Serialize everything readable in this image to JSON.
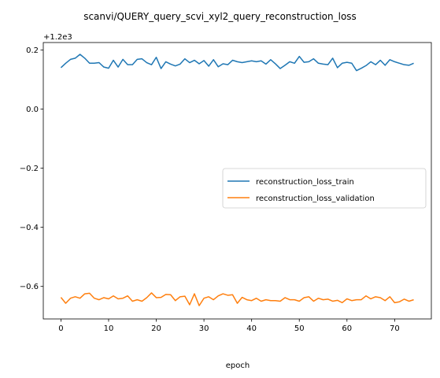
{
  "chart_data": {
    "type": "line",
    "title": "scanvi/QUERY_query_scvi_xyl2_query_reconstruction_loss",
    "xlabel": "epoch",
    "ylabel": "",
    "offset_label": "+1.2e3",
    "xlim": [
      -3.7,
      77.7
    ],
    "ylim": [
      -0.71,
      0.225
    ],
    "xticks": [
      0,
      10,
      20,
      30,
      40,
      50,
      60,
      70
    ],
    "yticks": [
      0.2,
      0.0,
      -0.2,
      -0.4,
      -0.6
    ],
    "ytick_labels": [
      "0.2",
      "0.0",
      "−0.2",
      "−0.4",
      "−0.6"
    ],
    "grid": false,
    "legend_position": "center-right",
    "series": [
      {
        "name": "reconstruction_loss_train",
        "color": "#1f77b4",
        "x": [
          0,
          1,
          2,
          3,
          4,
          5,
          6,
          7,
          8,
          9,
          10,
          11,
          12,
          13,
          14,
          15,
          16,
          17,
          18,
          19,
          20,
          21,
          22,
          23,
          24,
          25,
          26,
          27,
          28,
          29,
          30,
          31,
          32,
          33,
          34,
          35,
          36,
          37,
          38,
          39,
          40,
          41,
          42,
          43,
          44,
          45,
          46,
          47,
          48,
          49,
          50,
          51,
          52,
          53,
          54,
          55,
          56,
          57,
          58,
          59,
          60,
          61,
          62,
          63,
          64,
          65,
          66,
          67,
          68,
          69,
          70,
          71,
          72,
          73,
          74
        ],
        "values": [
          0.14,
          0.155,
          0.168,
          0.172,
          0.185,
          0.172,
          0.155,
          0.155,
          0.157,
          0.142,
          0.138,
          0.165,
          0.142,
          0.168,
          0.15,
          0.15,
          0.168,
          0.17,
          0.157,
          0.15,
          0.175,
          0.137,
          0.16,
          0.152,
          0.146,
          0.152,
          0.17,
          0.157,
          0.165,
          0.153,
          0.164,
          0.145,
          0.167,
          0.143,
          0.153,
          0.15,
          0.165,
          0.16,
          0.157,
          0.16,
          0.163,
          0.16,
          0.163,
          0.152,
          0.167,
          0.153,
          0.137,
          0.148,
          0.16,
          0.155,
          0.178,
          0.158,
          0.16,
          0.17,
          0.155,
          0.152,
          0.15,
          0.172,
          0.14,
          0.155,
          0.158,
          0.155,
          0.13,
          0.138,
          0.147,
          0.16,
          0.15,
          0.165,
          0.148,
          0.167,
          0.16,
          0.155,
          0.15,
          0.148,
          0.155
        ]
      },
      {
        "name": "reconstruction_loss_validation",
        "color": "#ff7f0e",
        "x": [
          0,
          1,
          2,
          3,
          4,
          5,
          6,
          7,
          8,
          9,
          10,
          11,
          12,
          13,
          14,
          15,
          16,
          17,
          18,
          19,
          20,
          21,
          22,
          23,
          24,
          25,
          26,
          27,
          28,
          29,
          30,
          31,
          32,
          33,
          34,
          35,
          36,
          37,
          38,
          39,
          40,
          41,
          42,
          43,
          44,
          45,
          46,
          47,
          48,
          49,
          50,
          51,
          52,
          53,
          54,
          55,
          56,
          57,
          58,
          59,
          60,
          61,
          62,
          63,
          64,
          65,
          66,
          67,
          68,
          69,
          70,
          71,
          72,
          73,
          74
        ],
        "values": [
          -0.637,
          -0.657,
          -0.64,
          -0.635,
          -0.64,
          -0.625,
          -0.623,
          -0.64,
          -0.645,
          -0.638,
          -0.642,
          -0.632,
          -0.642,
          -0.64,
          -0.632,
          -0.65,
          -0.645,
          -0.65,
          -0.638,
          -0.622,
          -0.638,
          -0.637,
          -0.627,
          -0.628,
          -0.648,
          -0.635,
          -0.633,
          -0.662,
          -0.625,
          -0.665,
          -0.64,
          -0.635,
          -0.645,
          -0.632,
          -0.625,
          -0.63,
          -0.628,
          -0.657,
          -0.637,
          -0.645,
          -0.648,
          -0.64,
          -0.65,
          -0.645,
          -0.648,
          -0.648,
          -0.65,
          -0.638,
          -0.645,
          -0.645,
          -0.65,
          -0.638,
          -0.635,
          -0.65,
          -0.64,
          -0.645,
          -0.643,
          -0.65,
          -0.647,
          -0.655,
          -0.642,
          -0.648,
          -0.645,
          -0.645,
          -0.632,
          -0.642,
          -0.635,
          -0.638,
          -0.648,
          -0.635,
          -0.655,
          -0.652,
          -0.643,
          -0.65,
          -0.645
        ]
      }
    ]
  }
}
